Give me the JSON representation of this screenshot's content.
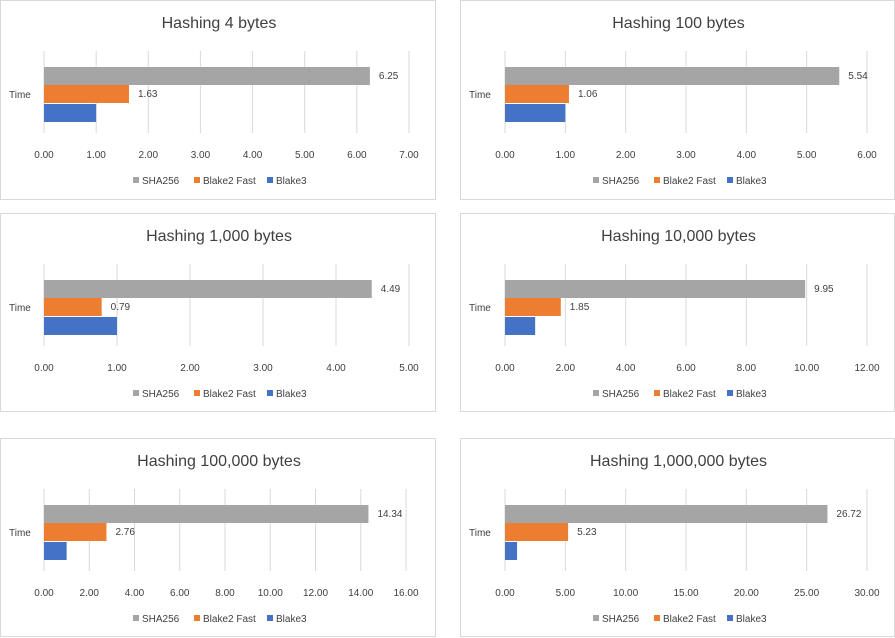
{
  "colors": {
    "SHA256": "#a5a5a5",
    "Blake2 Fast": "#ed7d31",
    "Blake3": "#4472c4"
  },
  "chart_data": [
    {
      "type": "bar",
      "orientation": "horizontal",
      "title": "Hashing 4 bytes",
      "categories": [
        "Time"
      ],
      "xlim": [
        0,
        7
      ],
      "ticks": [
        "0.00",
        "1.00",
        "2.00",
        "3.00",
        "4.00",
        "5.00",
        "6.00",
        "7.00"
      ],
      "legend": [
        "SHA256",
        "Blake2 Fast",
        "Blake3"
      ],
      "legend_position": "bottom",
      "series": [
        {
          "name": "SHA256",
          "values": [
            6.25
          ],
          "label": "6.25"
        },
        {
          "name": "Blake2 Fast",
          "values": [
            1.63
          ],
          "label": "1.63"
        },
        {
          "name": "Blake3",
          "values": [
            1.0
          ],
          "label": ""
        }
      ]
    },
    {
      "type": "bar",
      "orientation": "horizontal",
      "title": "Hashing 100 bytes",
      "categories": [
        "Time"
      ],
      "xlim": [
        0,
        6
      ],
      "ticks": [
        "0.00",
        "1.00",
        "2.00",
        "3.00",
        "4.00",
        "5.00",
        "6.00"
      ],
      "legend": [
        "SHA256",
        "Blake2 Fast",
        "Blake3"
      ],
      "legend_position": "bottom",
      "series": [
        {
          "name": "SHA256",
          "values": [
            5.54
          ],
          "label": "5.54"
        },
        {
          "name": "Blake2 Fast",
          "values": [
            1.06
          ],
          "label": "1.06"
        },
        {
          "name": "Blake3",
          "values": [
            1.0
          ],
          "label": ""
        }
      ]
    },
    {
      "type": "bar",
      "orientation": "horizontal",
      "title": "Hashing 1,000 bytes",
      "categories": [
        "Time"
      ],
      "xlim": [
        0,
        5
      ],
      "ticks": [
        "0.00",
        "1.00",
        "2.00",
        "3.00",
        "4.00",
        "5.00"
      ],
      "legend": [
        "SHA256",
        "Blake2 Fast",
        "Blake3"
      ],
      "legend_position": "bottom",
      "series": [
        {
          "name": "SHA256",
          "values": [
            4.49
          ],
          "label": "4.49"
        },
        {
          "name": "Blake2 Fast",
          "values": [
            0.79
          ],
          "label": "0.79"
        },
        {
          "name": "Blake3",
          "values": [
            1.0
          ],
          "label": ""
        }
      ]
    },
    {
      "type": "bar",
      "orientation": "horizontal",
      "title": "Hashing 10,000 bytes",
      "categories": [
        "Time"
      ],
      "xlim": [
        0,
        12
      ],
      "ticks": [
        "0.00",
        "2.00",
        "4.00",
        "6.00",
        "8.00",
        "10.00",
        "12.00"
      ],
      "legend": [
        "SHA256",
        "Blake2 Fast",
        "Blake3"
      ],
      "legend_position": "bottom",
      "series": [
        {
          "name": "SHA256",
          "values": [
            9.95
          ],
          "label": "9.95"
        },
        {
          "name": "Blake2 Fast",
          "values": [
            1.85
          ],
          "label": "1.85"
        },
        {
          "name": "Blake3",
          "values": [
            1.0
          ],
          "label": ""
        }
      ]
    },
    {
      "type": "bar",
      "orientation": "horizontal",
      "title": "Hashing 100,000 bytes",
      "categories": [
        "Time"
      ],
      "xlim": [
        0,
        16
      ],
      "ticks": [
        "0.00",
        "2.00",
        "4.00",
        "6.00",
        "8.00",
        "10.00",
        "12.00",
        "14.00",
        "16.00"
      ],
      "legend": [
        "SHA256",
        "Blake2 Fast",
        "Blake3"
      ],
      "legend_position": "bottom",
      "series": [
        {
          "name": "SHA256",
          "values": [
            14.34
          ],
          "label": "14.34"
        },
        {
          "name": "Blake2 Fast",
          "values": [
            2.76
          ],
          "label": "2.76"
        },
        {
          "name": "Blake3",
          "values": [
            1.0
          ],
          "label": ""
        }
      ]
    },
    {
      "type": "bar",
      "orientation": "horizontal",
      "title": "Hashing 1,000,000 bytes",
      "categories": [
        "Time"
      ],
      "xlim": [
        0,
        30
      ],
      "ticks": [
        "0.00",
        "5.00",
        "10.00",
        "15.00",
        "20.00",
        "25.00",
        "30.00"
      ],
      "legend": [
        "SHA256",
        "Blake2 Fast",
        "Blake3"
      ],
      "legend_position": "bottom",
      "series": [
        {
          "name": "SHA256",
          "values": [
            26.72
          ],
          "label": "26.72"
        },
        {
          "name": "Blake2 Fast",
          "values": [
            5.23
          ],
          "label": "5.23"
        },
        {
          "name": "Blake3",
          "values": [
            1.0
          ],
          "label": ""
        }
      ]
    }
  ]
}
